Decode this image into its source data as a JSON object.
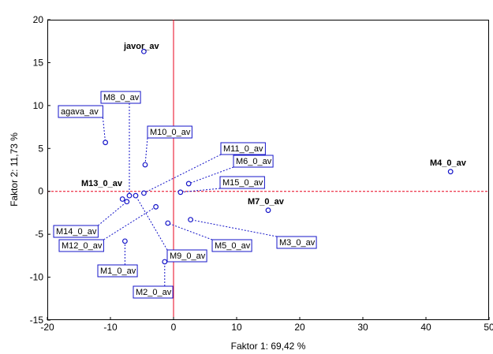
{
  "chart_data": {
    "type": "scatter",
    "xlabel": "Faktor 1: 69,42 %",
    "ylabel": "Faktor 2: 11,73 %",
    "xlim": [
      -20,
      50
    ],
    "ylim": [
      -15,
      20
    ],
    "x_ticks": [
      -20,
      -10,
      0,
      10,
      20,
      30,
      40,
      50
    ],
    "y_ticks": [
      -15,
      -10,
      -5,
      0,
      5,
      10,
      15,
      20
    ],
    "grid": false,
    "reference_lines": {
      "x": 0,
      "y": 0,
      "color": "#e8001c",
      "style": "dashed"
    },
    "point_color": "#1414c8",
    "points": [
      {
        "label": "javor_av",
        "x": -4.7,
        "y": 16.3,
        "boxed": false
      },
      {
        "label": "agava_av",
        "x": -10.8,
        "y": 5.7,
        "boxed": true
      },
      {
        "label": "M8_0_av",
        "x": -7.0,
        "y": -0.5,
        "boxed": true
      },
      {
        "label": "M10_0_av",
        "x": -4.5,
        "y": 3.1,
        "boxed": true
      },
      {
        "label": "M11_0_av",
        "x": -4.7,
        "y": -0.2,
        "boxed": true
      },
      {
        "label": "M6_0_av",
        "x": 2.4,
        "y": 0.9,
        "boxed": true
      },
      {
        "label": "M15_0_av",
        "x": 1.1,
        "y": -0.1,
        "boxed": true
      },
      {
        "label": "M4_0_av",
        "x": 43.9,
        "y": 2.3,
        "boxed": false
      },
      {
        "label": "M13_0_av",
        "x": -8.1,
        "y": -0.9,
        "boxed": false
      },
      {
        "label": "M7_0_av",
        "x": 15.0,
        "y": -2.2,
        "boxed": false
      },
      {
        "label": "M14_0_av",
        "x": -7.4,
        "y": -1.2,
        "boxed": true
      },
      {
        "label": "M12_0_av",
        "x": -2.8,
        "y": -1.8,
        "boxed": true
      },
      {
        "label": "M5_0_av",
        "x": -0.9,
        "y": -3.7,
        "boxed": true
      },
      {
        "label": "M3_0_av",
        "x": 2.7,
        "y": -3.3,
        "boxed": true
      },
      {
        "label": "M9_0_av",
        "x": -6.0,
        "y": -0.5,
        "boxed": true
      },
      {
        "label": "M1_0_av",
        "x": -7.7,
        "y": -5.8,
        "boxed": true
      },
      {
        "label": "M2_0_av",
        "x": -1.4,
        "y": -8.2,
        "boxed": true
      }
    ]
  }
}
